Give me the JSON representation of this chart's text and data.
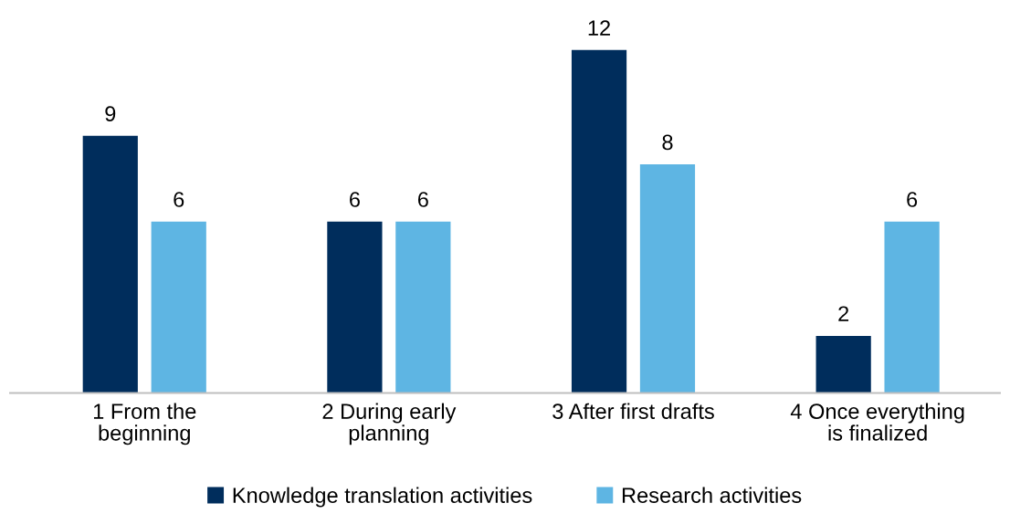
{
  "chart_data": {
    "type": "bar",
    "categories": [
      "1 From the\nbeginning",
      "2 During early\nplanning",
      "3 After first drafts",
      "4 Once everything\nis finalized"
    ],
    "series": [
      {
        "name": "Knowledge translation activities",
        "color": "#002d5c",
        "values": [
          9,
          6,
          12,
          2
        ]
      },
      {
        "name": "Research activities",
        "color": "#5eb5e3",
        "values": [
          6,
          6,
          8,
          6
        ]
      }
    ],
    "data_labels": true,
    "legend": "bottom",
    "tick_labels": "x"
  }
}
